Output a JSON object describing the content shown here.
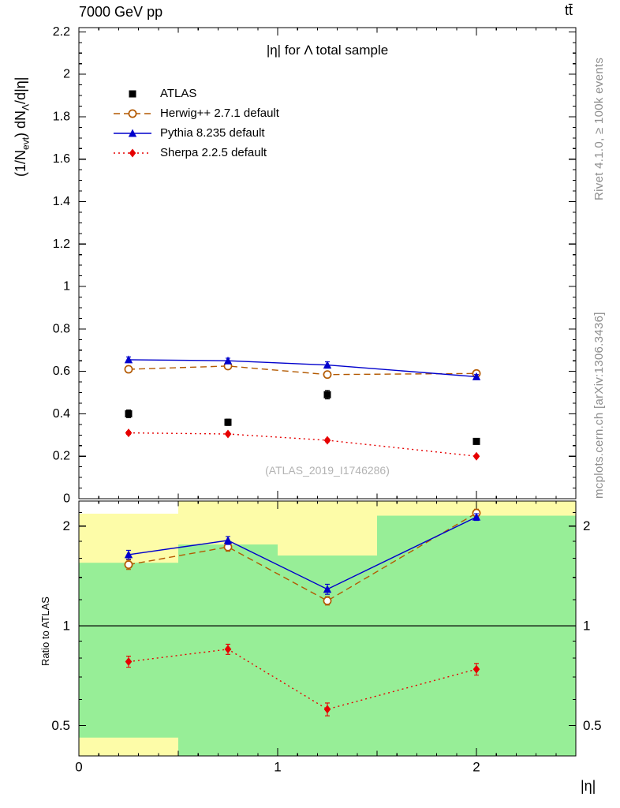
{
  "header": {
    "left": "7000 GeV pp",
    "right": "tt̄"
  },
  "side_notes": {
    "top_right": "Rivet 4.1.0, ≥ 100k events",
    "bottom_right": "mcplots.cern.ch [arXiv:1306.3436]"
  },
  "watermark": "(ATLAS_2019_I1746286)",
  "axis_labels": {
    "y_main": {
      "pre": "(1/N",
      "sub1": "evt",
      "mid": ") dN",
      "sub2": "Λ",
      "post": "/d|η|"
    },
    "y_ratio": "Ratio to ATLAS",
    "x": "|η|"
  },
  "chart_data": {
    "type": "line",
    "title": "|η| for Λ total sample",
    "xlabel": "|η|",
    "xlim": [
      0,
      2.5
    ],
    "xticks_major": [
      0,
      1,
      2
    ],
    "xticks_mid": [
      0.5,
      1.5
    ],
    "xtick_minor_step": 0.1,
    "x": [
      0.25,
      0.75,
      1.25,
      2.0
    ],
    "bin_edges": [
      0,
      0.5,
      1.0,
      1.5,
      2.5
    ],
    "colors": {
      "yellow_band": "#fdfca8",
      "green_band": "#97ee97",
      "atlas": "#000000",
      "herwig": "#b35900",
      "pythia": "#0000cc",
      "sherpa": "#e60000"
    },
    "main": {
      "ylim": [
        0,
        2.22
      ],
      "ytick_minor_step": 0.05,
      "yticks": [
        0,
        0.2,
        0.4,
        0.6,
        0.8,
        1,
        1.2,
        1.4,
        1.6,
        1.8,
        2,
        2.2
      ],
      "series": [
        {
          "name": "ATLAS",
          "color": "#000000",
          "marker": "square",
          "line": "none",
          "values": [
            0.4,
            0.36,
            0.49,
            0.27
          ],
          "yerr": [
            0.018,
            0.015,
            0.02,
            0.012
          ]
        },
        {
          "name": "Herwig++ 2.7.1 default",
          "color": "#b35900",
          "marker": "circle-open",
          "line": "dashed",
          "values": [
            0.61,
            0.625,
            0.585,
            0.59
          ],
          "yerr": [
            0.01,
            0.01,
            0.01,
            0.012
          ]
        },
        {
          "name": "Pythia 8.235 default",
          "color": "#0000cc",
          "marker": "triangle",
          "line": "solid",
          "values": [
            0.655,
            0.65,
            0.63,
            0.575
          ],
          "yerr": [
            0.013,
            0.012,
            0.015,
            0.01
          ]
        },
        {
          "name": "Sherpa 2.2.5 default",
          "color": "#e60000",
          "marker": "diamond",
          "line": "dotted",
          "values": [
            0.31,
            0.305,
            0.275,
            0.2
          ],
          "yerr": [
            0.007,
            0.007,
            0.007,
            0.006
          ]
        }
      ]
    },
    "ratio": {
      "scale": "log",
      "ylim": [
        0.405,
        2.38
      ],
      "yticks": [
        0.5,
        1,
        2
      ],
      "yticks_minor": [
        0.6,
        0.7,
        0.8,
        0.9,
        1.2,
        1.4,
        1.6,
        1.8,
        2.2
      ],
      "ref_line": 1,
      "bands": [
        {
          "x0": 0.0,
          "x1": 0.5,
          "yellow": [
            0.4,
            2.18
          ],
          "green": [
            0.46,
            1.55
          ]
        },
        {
          "x0": 0.5,
          "x1": 1.0,
          "yellow": [
            0.4,
            2.4
          ],
          "green": [
            0.4,
            1.76
          ]
        },
        {
          "x0": 1.0,
          "x1": 1.5,
          "yellow": [
            0.4,
            2.4
          ],
          "green": [
            0.4,
            1.63
          ]
        },
        {
          "x0": 1.5,
          "x1": 2.5,
          "yellow": [
            0.4,
            2.4
          ],
          "green": [
            0.4,
            2.15
          ]
        }
      ],
      "series": [
        {
          "name": "Herwig++ 2.7.1 default",
          "color": "#b35900",
          "marker": "circle-open",
          "line": "dashed",
          "values": [
            1.53,
            1.73,
            1.19,
            2.19
          ],
          "yerr": [
            0.05,
            0.05,
            0.035,
            0.06
          ]
        },
        {
          "name": "Pythia 8.235 default",
          "color": "#0000cc",
          "marker": "triangle",
          "line": "solid",
          "values": [
            1.64,
            1.81,
            1.29,
            2.13
          ],
          "yerr": [
            0.05,
            0.05,
            0.045,
            0.05
          ]
        },
        {
          "name": "Sherpa 2.2.5 default",
          "color": "#e60000",
          "marker": "diamond",
          "line": "dotted",
          "values": [
            0.78,
            0.85,
            0.56,
            0.74
          ],
          "yerr": [
            0.03,
            0.03,
            0.025,
            0.03
          ]
        }
      ]
    }
  }
}
